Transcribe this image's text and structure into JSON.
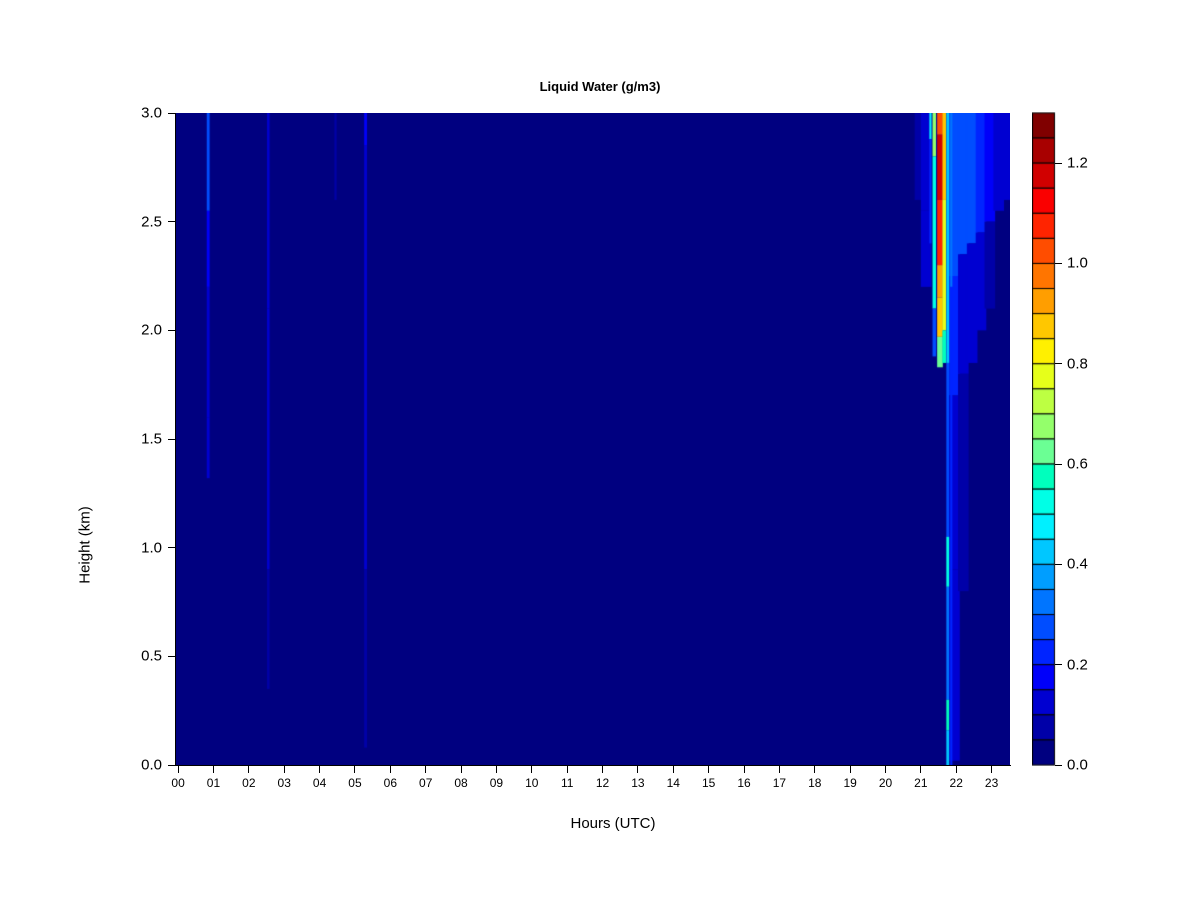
{
  "figure": {
    "title": "Liquid Water (g/m3)",
    "xlabel": "Hours (UTC)",
    "ylabel": "Height (km)"
  },
  "chart_data": {
    "type": "heatmap",
    "title": "Liquid Water (g/m3)",
    "xlabel": "Hours (UTC)",
    "ylabel": "Height (km)",
    "x_range": [
      -0.06,
      23.52
    ],
    "y_range": [
      0,
      3
    ],
    "x_tick_values": [
      0,
      1,
      2,
      3,
      4,
      5,
      6,
      7,
      8,
      9,
      10,
      11,
      12,
      13,
      14,
      15,
      16,
      17,
      18,
      19,
      20,
      21,
      22,
      23
    ],
    "x_tick_labels": [
      "00",
      "01",
      "02",
      "03",
      "04",
      "05",
      "06",
      "07",
      "08",
      "09",
      "10",
      "11",
      "12",
      "13",
      "14",
      "15",
      "16",
      "17",
      "18",
      "19",
      "20",
      "21",
      "22",
      "23"
    ],
    "y_tick_values": [
      0.0,
      0.5,
      1.0,
      1.5,
      2.0,
      2.5,
      3.0
    ],
    "y_tick_labels": [
      "0.0",
      "0.5",
      "1.0",
      "1.5",
      "2.0",
      "2.5",
      "3.0"
    ],
    "value_range": [
      0,
      1.3
    ],
    "value_step": 0.05,
    "background_value": 0.0,
    "palette": [
      "#000080",
      "#0000A8",
      "#0000D1",
      "#0000FA",
      "#0024FF",
      "#004DFF",
      "#0075FF",
      "#009EFF",
      "#00C7FF",
      "#00F0FF",
      "#00FFE6",
      "#00FFBD",
      "#6BFF94",
      "#94FF6B",
      "#BDFF42",
      "#E6FF1A",
      "#FFF000",
      "#FFC700",
      "#FF9E00",
      "#FF7500",
      "#FF4D00",
      "#FF2400",
      "#FA0000",
      "#D10000",
      "#A80000",
      "#800000"
    ],
    "colorbar_tick_values": [
      0.0,
      0.2,
      0.4,
      0.6,
      0.8,
      1.0,
      1.2
    ],
    "colorbar_tick_labels": [
      "0.0",
      "0.2",
      "0.4",
      "0.6",
      "0.8",
      "1.0",
      "1.2"
    ],
    "features": [
      {
        "hour": 20.95,
        "width": 0.25,
        "segments": [
          [
            3.0,
            2.6,
            0.08
          ]
        ]
      },
      {
        "hour": 21.15,
        "width": 0.3,
        "segments": [
          [
            3.0,
            2.55,
            0.15
          ],
          [
            2.55,
            2.2,
            0.1
          ]
        ]
      },
      {
        "hour": 21.95,
        "width": 0.3,
        "segments": [
          [
            3.0,
            2.25,
            0.3
          ],
          [
            2.25,
            1.7,
            0.2
          ],
          [
            1.7,
            0.9,
            0.12
          ],
          [
            0.9,
            0.02,
            0.1
          ]
        ]
      },
      {
        "hour": 22.2,
        "width": 0.3,
        "segments": [
          [
            3.0,
            2.35,
            0.28
          ],
          [
            2.35,
            1.8,
            0.15
          ],
          [
            1.8,
            0.8,
            0.08
          ]
        ]
      },
      {
        "hour": 22.45,
        "width": 0.3,
        "segments": [
          [
            3.0,
            2.4,
            0.25
          ],
          [
            2.4,
            1.85,
            0.12
          ]
        ]
      },
      {
        "hour": 22.7,
        "width": 0.3,
        "segments": [
          [
            3.0,
            2.45,
            0.22
          ],
          [
            2.45,
            2.0,
            0.1
          ]
        ]
      },
      {
        "hour": 22.95,
        "width": 0.3,
        "segments": [
          [
            3.0,
            2.5,
            0.18
          ],
          [
            2.5,
            2.1,
            0.08
          ]
        ]
      },
      {
        "hour": 23.2,
        "width": 0.3,
        "segments": [
          [
            3.0,
            2.55,
            0.14
          ]
        ]
      },
      {
        "hour": 23.42,
        "width": 0.2,
        "segments": [
          [
            3.0,
            2.6,
            0.11
          ]
        ]
      },
      {
        "hour": 0.85,
        "width": 0.08,
        "segments": [
          [
            3.0,
            2.55,
            0.3
          ],
          [
            2.55,
            2.2,
            0.18
          ],
          [
            2.2,
            1.6,
            0.12
          ],
          [
            1.6,
            1.32,
            0.1
          ]
        ]
      },
      {
        "hour": 2.55,
        "width": 0.07,
        "segments": [
          [
            3.0,
            2.1,
            0.1
          ],
          [
            2.1,
            0.9,
            0.12
          ],
          [
            0.9,
            0.35,
            0.08
          ]
        ]
      },
      {
        "hour": 4.45,
        "width": 0.06,
        "segments": [
          [
            3.0,
            2.6,
            0.08
          ]
        ]
      },
      {
        "hour": 5.3,
        "width": 0.08,
        "segments": [
          [
            3.0,
            2.85,
            0.16
          ],
          [
            2.85,
            0.9,
            0.1
          ],
          [
            0.9,
            0.08,
            0.09
          ]
        ]
      },
      {
        "hour": 21.27,
        "width": 0.06,
        "segments": [
          [
            3.0,
            2.88,
            0.45
          ],
          [
            2.88,
            2.4,
            0.2
          ]
        ]
      },
      {
        "hour": 21.38,
        "width": 0.1,
        "segments": [
          [
            3.0,
            2.8,
            0.65
          ],
          [
            2.8,
            2.1,
            0.5
          ],
          [
            2.1,
            1.88,
            0.3
          ]
        ]
      },
      {
        "hour": 21.46,
        "width": 0.04,
        "segments": [
          [
            3.0,
            1.9,
            0.08
          ]
        ]
      },
      {
        "hour": 21.54,
        "width": 0.16,
        "segments": [
          [
            3.0,
            2.9,
            1.02
          ],
          [
            2.9,
            2.6,
            1.17
          ],
          [
            2.6,
            2.3,
            1.07
          ],
          [
            2.3,
            2.15,
            0.95
          ],
          [
            2.15,
            1.97,
            0.85
          ],
          [
            1.97,
            1.83,
            0.62
          ]
        ]
      },
      {
        "hour": 21.66,
        "width": 0.1,
        "segments": [
          [
            3.0,
            2.6,
            0.88
          ],
          [
            2.6,
            2.0,
            0.78
          ],
          [
            2.0,
            1.85,
            0.55
          ]
        ]
      },
      {
        "hour": 21.76,
        "width": 0.08,
        "segments": [
          [
            3.0,
            1.85,
            0.42
          ],
          [
            1.85,
            1.05,
            0.3
          ],
          [
            1.05,
            0.82,
            0.5
          ],
          [
            0.82,
            0.3,
            0.32
          ],
          [
            0.3,
            0.16,
            0.55
          ],
          [
            0.16,
            0.0,
            0.4
          ]
        ]
      },
      {
        "hour": 21.86,
        "width": 0.06,
        "segments": [
          [
            3.0,
            2.2,
            0.33
          ],
          [
            2.2,
            0.0,
            0.22
          ]
        ]
      }
    ]
  }
}
